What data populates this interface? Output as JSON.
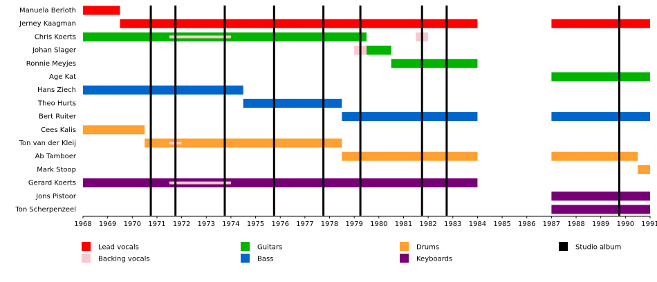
{
  "chart_data": {
    "type": "timeline",
    "xlim": [
      1968,
      1991
    ],
    "xticks": [
      1968,
      1969,
      1970,
      1971,
      1972,
      1973,
      1974,
      1975,
      1976,
      1977,
      1978,
      1979,
      1980,
      1981,
      1982,
      1983,
      1984,
      1985,
      1986,
      1987,
      1988,
      1989,
      1990,
      1991
    ],
    "roles": [
      {
        "name": "Lead vocals",
        "color": "#ff0000"
      },
      {
        "name": "Backing vocals",
        "color": "#f8c8d0"
      },
      {
        "name": "Guitars",
        "color": "#00b400"
      },
      {
        "name": "Bass",
        "color": "#0066cc"
      },
      {
        "name": "Drums",
        "color": "#ffa030"
      },
      {
        "name": "Keyboards",
        "color": "#770077"
      }
    ],
    "albums": {
      "name": "Studio album",
      "color": "#000000",
      "x": [
        1970.75,
        1971.75,
        1973.75,
        1975.75,
        1977.75,
        1979.25,
        1981.75,
        1982.75,
        1989.75
      ]
    },
    "members": [
      {
        "name": "Manuela Berloth",
        "bars": [
          {
            "role": 0,
            "start": 1968,
            "end": 1969.5
          }
        ]
      },
      {
        "name": "Jerney Kaagman",
        "bars": [
          {
            "role": 0,
            "start": 1969.5,
            "end": 1984
          },
          {
            "role": 0,
            "start": 1987,
            "end": 1991
          }
        ]
      },
      {
        "name": "Chris Koerts",
        "bars": [
          {
            "role": 2,
            "start": 1968,
            "end": 1979.5
          },
          {
            "role": 1,
            "start": 1971.5,
            "end": 1974
          },
          {
            "role": 1,
            "start": 1981.5,
            "end": 1982
          }
        ]
      },
      {
        "name": "Johan Slager",
        "bars": [
          {
            "role": 1,
            "start": 1979,
            "end": 1979.5
          },
          {
            "role": 2,
            "start": 1979.5,
            "end": 1980.5
          }
        ]
      },
      {
        "name": "Ronnie Meyjes",
        "bars": [
          {
            "role": 2,
            "start": 1980.5,
            "end": 1984
          }
        ]
      },
      {
        "name": "Age Kat",
        "bars": [
          {
            "role": 2,
            "start": 1987,
            "end": 1991
          }
        ]
      },
      {
        "name": "Hans Ziech",
        "bars": [
          {
            "role": 3,
            "start": 1968,
            "end": 1974.5
          }
        ]
      },
      {
        "name": "Theo Hurts",
        "bars": [
          {
            "role": 3,
            "start": 1974.5,
            "end": 1978.5
          }
        ]
      },
      {
        "name": "Bert Ruiter",
        "bars": [
          {
            "role": 3,
            "start": 1978.5,
            "end": 1984
          },
          {
            "role": 3,
            "start": 1987,
            "end": 1991
          }
        ]
      },
      {
        "name": "Cees Kalis",
        "bars": [
          {
            "role": 4,
            "start": 1968,
            "end": 1970.5
          }
        ]
      },
      {
        "name": "Ton van der Kleij",
        "bars": [
          {
            "role": 4,
            "start": 1970.5,
            "end": 1978.5
          },
          {
            "role": 1,
            "start": 1971.5,
            "end": 1972
          }
        ]
      },
      {
        "name": "Ab Tamboer",
        "bars": [
          {
            "role": 4,
            "start": 1978.5,
            "end": 1984
          },
          {
            "role": 4,
            "start": 1987,
            "end": 1990.5
          }
        ]
      },
      {
        "name": "Mark Stoop",
        "bars": [
          {
            "role": 4,
            "start": 1990.5,
            "end": 1991
          }
        ]
      },
      {
        "name": "Gerard Koerts",
        "bars": [
          {
            "role": 5,
            "start": 1968,
            "end": 1984
          },
          {
            "role": 1,
            "start": 1971.5,
            "end": 1974
          }
        ]
      },
      {
        "name": "Jons Pistoor",
        "bars": [
          {
            "role": 5,
            "start": 1987,
            "end": 1991
          }
        ]
      },
      {
        "name": "Ton Scherpenzeel",
        "bars": [
          {
            "role": 5,
            "start": 1987,
            "end": 1991
          }
        ]
      }
    ]
  }
}
